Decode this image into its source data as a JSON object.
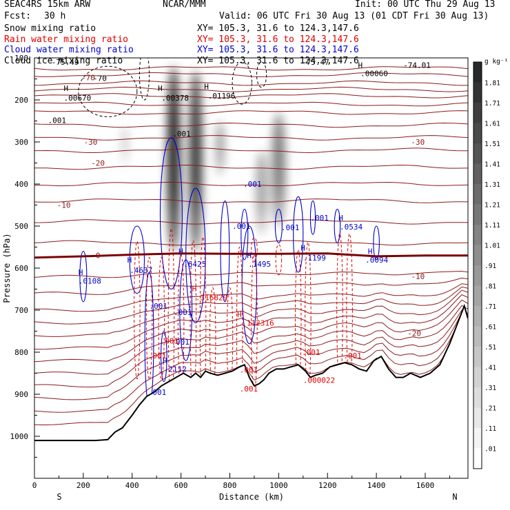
{
  "header": {
    "model": "SEAC4RS 15km ARW",
    "org": "NCAR/MMM",
    "init": "Init: 00 UTC Thu 29 Aug 13",
    "fcst_label": "Fcst:",
    "fcst_value": "30 h",
    "valid": "Valid: 06 UTC Fri 30 Aug 13 (01 CDT Fri 30 Aug 13)"
  },
  "fields": [
    {
      "name": "Snow mixing ratio",
      "xy": "XY= 105.3, 31.6 to 124.3,147.6",
      "color": "#000000"
    },
    {
      "name": "Rain water mixing ratio",
      "xy": "XY= 105.3, 31.6 to 124.3,147.6",
      "color": "#dd0000"
    },
    {
      "name": "Cloud water mixing ratio",
      "xy": "XY= 105.3, 31.6 to 124.3,147.6",
      "color": "#0000cc"
    },
    {
      "name": "Cloud ice mixing ratio",
      "xy": "XY= 105.3, 31.6 to 124.3,147.6",
      "color": "#000000"
    }
  ],
  "chart_data": {
    "type": "contour-cross-section",
    "xlabel": "Distance (km)",
    "ylabel": "Pressure (hPa)",
    "xlim": [
      0,
      1775
    ],
    "ylim": [
      1100,
      100
    ],
    "x_ticks": [
      0,
      200,
      400,
      600,
      800,
      1000,
      1200,
      1400,
      1600
    ],
    "y_ticks": [
      100,
      200,
      300,
      400,
      500,
      600,
      700,
      800,
      900,
      1000
    ],
    "y_tick_labels": [
      "100",
      "200",
      "300",
      "400",
      "500",
      "600",
      "700",
      "800",
      "900",
      "1000"
    ],
    "x_end_labels": {
      "left": "S",
      "right": "N"
    },
    "colorbar": {
      "unit": "g kg⁻¹",
      "levels": [
        ".01",
        ".11",
        ".21",
        ".31",
        ".41",
        ".51",
        ".61",
        ".71",
        ".81",
        ".91",
        "1.01",
        "1.11",
        "1.21",
        "1.31",
        "1.41",
        "1.51",
        "1.61",
        "1.71",
        "1.81"
      ]
    },
    "terrain": [
      [
        0,
        1010
      ],
      [
        50,
        1010
      ],
      [
        100,
        1010
      ],
      [
        150,
        1010
      ],
      [
        200,
        1010
      ],
      [
        250,
        1010
      ],
      [
        300,
        1008
      ],
      [
        330,
        990
      ],
      [
        360,
        980
      ],
      [
        380,
        965
      ],
      [
        400,
        950
      ],
      [
        430,
        925
      ],
      [
        460,
        905
      ],
      [
        490,
        895
      ],
      [
        520,
        880
      ],
      [
        550,
        870
      ],
      [
        580,
        860
      ],
      [
        610,
        850
      ],
      [
        640,
        860
      ],
      [
        660,
        850
      ],
      [
        680,
        860
      ],
      [
        700,
        845
      ],
      [
        720,
        850
      ],
      [
        750,
        855
      ],
      [
        780,
        850
      ],
      [
        810,
        845
      ],
      [
        840,
        835
      ],
      [
        860,
        830
      ],
      [
        880,
        860
      ],
      [
        900,
        880
      ],
      [
        920,
        875
      ],
      [
        940,
        865
      ],
      [
        960,
        850
      ],
      [
        990,
        840
      ],
      [
        1020,
        840
      ],
      [
        1050,
        835
      ],
      [
        1080,
        830
      ],
      [
        1110,
        845
      ],
      [
        1130,
        860
      ],
      [
        1150,
        855
      ],
      [
        1180,
        850
      ],
      [
        1210,
        835
      ],
      [
        1240,
        830
      ],
      [
        1270,
        825
      ],
      [
        1300,
        830
      ],
      [
        1330,
        840
      ],
      [
        1360,
        845
      ],
      [
        1390,
        820
      ],
      [
        1420,
        810
      ],
      [
        1450,
        840
      ],
      [
        1480,
        860
      ],
      [
        1510,
        860
      ],
      [
        1540,
        850
      ],
      [
        1580,
        860
      ],
      [
        1620,
        850
      ],
      [
        1660,
        830
      ],
      [
        1700,
        780
      ],
      [
        1740,
        720
      ],
      [
        1760,
        690
      ],
      [
        1775,
        720
      ]
    ],
    "freezing_level": [
      [
        0,
        575
      ],
      [
        200,
        572
      ],
      [
        400,
        568
      ],
      [
        600,
        565
      ],
      [
        800,
        566
      ],
      [
        1000,
        566
      ],
      [
        1200,
        565
      ],
      [
        1400,
        572
      ],
      [
        1600,
        570
      ],
      [
        1775,
        570
      ]
    ],
    "temperature_isotherms": [
      {
        "label": "-70",
        "p": 147,
        "label_x": 220
      },
      {
        "label": "-30",
        "p": 300,
        "label_x": 230
      },
      {
        "label": "-20",
        "p": 350,
        "label_x": 260
      },
      {
        "label": "-10",
        "p": 450,
        "label_x": 120
      },
      {
        "label": "0",
        "p": 570,
        "label_x": 260
      },
      {
        "label": "-10",
        "p": 620,
        "label_x": 1570
      },
      {
        "label": "-20",
        "p": 755,
        "label_x": 1555
      },
      {
        "label": "-30",
        "p": 300,
        "label_x": 1570
      }
    ],
    "potential_temp_lines": [
      125,
      140,
      160,
      175,
      190,
      210,
      230,
      260,
      290,
      320,
      360,
      400,
      440,
      490,
      540,
      620,
      660,
      700,
      730,
      760,
      790,
      820,
      850,
      880,
      910,
      940,
      970
    ],
    "snow_columns": [
      {
        "x_center": 570,
        "p_top": 120,
        "p_bot": 560,
        "width_km": 55,
        "peak": 1.81
      },
      {
        "x_center": 660,
        "p_top": 130,
        "p_bot": 560,
        "width_km": 55,
        "peak": 1.61
      },
      {
        "x_center": 760,
        "p_top": 250,
        "p_bot": 380,
        "width_km": 35,
        "peak": 0.71
      },
      {
        "x_center": 930,
        "p_top": 320,
        "p_bot": 520,
        "width_km": 50,
        "peak": 0.61
      },
      {
        "x_center": 1000,
        "p_top": 230,
        "p_bot": 500,
        "width_km": 60,
        "peak": 0.91
      },
      {
        "x_center": 370,
        "p_top": 260,
        "p_bot": 360,
        "width_km": 30,
        "peak": 0.21
      }
    ],
    "labels_black": [
      {
        "text": "-75.49",
        "x": 70,
        "p": 110
      },
      {
        "text": "-70",
        "x": 240,
        "p": 148
      },
      {
        "text": "H",
        "x": 120,
        "p": 172
      },
      {
        "text": ".00670",
        "x": 120,
        "p": 195
      },
      {
        "text": "H",
        "x": 505,
        "p": 172
      },
      {
        "text": ".00378",
        "x": 520,
        "p": 195
      },
      {
        "text": "H",
        "x": 695,
        "p": 168
      },
      {
        "text": ".01196",
        "x": 710,
        "p": 190
      },
      {
        "text": ".001",
        "x": 565,
        "p": 280
      },
      {
        "text": ".001",
        "x": 55,
        "p": 248
      },
      {
        "text": "-75.47",
        "x": 1095,
        "p": 110
      },
      {
        "text": "H",
        "x": 1325,
        "p": 117
      },
      {
        "text": ".00060",
        "x": 1335,
        "p": 137
      },
      {
        "text": "-74.01",
        "x": 1510,
        "p": 117
      }
    ],
    "labels_blue": [
      {
        "text": ".001",
        "x": 855,
        "p": 400
      },
      {
        "text": ".001",
        "x": 810,
        "p": 500
      },
      {
        "text": ".001",
        "x": 1010,
        "p": 503
      },
      {
        "text": ".001",
        "x": 1130,
        "p": 480
      },
      {
        "text": "H",
        "x": 1245,
        "p": 480
      },
      {
        "text": ".0534",
        "x": 1250,
        "p": 502
      },
      {
        "text": "H",
        "x": 1365,
        "p": 560
      },
      {
        "text": ".0094",
        "x": 1355,
        "p": 580
      },
      {
        "text": "H",
        "x": 380,
        "p": 580
      },
      {
        "text": ".4637",
        "x": 390,
        "p": 605
      },
      {
        "text": "H",
        "x": 180,
        "p": 610
      },
      {
        "text": ".0108",
        "x": 180,
        "p": 630
      },
      {
        "text": "H",
        "x": 590,
        "p": 560
      },
      {
        "text": ".6425",
        "x": 610,
        "p": 590
      },
      {
        "text": "H",
        "x": 870,
        "p": 570
      },
      {
        "text": ".1495",
        "x": 875,
        "p": 590
      },
      {
        "text": "H",
        "x": 1090,
        "p": 552
      },
      {
        "text": ".1199",
        "x": 1100,
        "p": 575
      },
      {
        "text": ".001",
        "x": 470,
        "p": 690
      },
      {
        "text": ".001",
        "x": 570,
        "p": 705
      },
      {
        "text": ".001",
        "x": 560,
        "p": 775
      },
      {
        "text": "H",
        "x": 525,
        "p": 820
      },
      {
        "text": ".2112",
        "x": 530,
        "p": 840
      },
      {
        "text": ".001",
        "x": 465,
        "p": 895
      }
    ],
    "labels_red": [
      {
        "text": "H",
        "x": 645,
        "p": 648
      },
      {
        "text": ".316829",
        "x": 660,
        "p": 670
      },
      {
        "text": "H",
        "x": 830,
        "p": 710
      },
      {
        "text": ".112316",
        "x": 850,
        "p": 730
      },
      {
        "text": ".001",
        "x": 465,
        "p": 808
      },
      {
        "text": ".001",
        "x": 515,
        "p": 773
      },
      {
        "text": ".001",
        "x": 840,
        "p": 842
      },
      {
        "text": ".001",
        "x": 1095,
        "p": 800
      },
      {
        "text": ".001",
        "x": 1265,
        "p": 808
      },
      {
        "text": ".000022",
        "x": 1100,
        "p": 866
      },
      {
        "text": ".001",
        "x": 840,
        "p": 887
      }
    ]
  },
  "colors": {
    "theta": "#8b1a1a",
    "isotherm_label": "#8b1a1a",
    "freezing": "#7a0000",
    "terrain": "#000000",
    "cloud_water": "#0000cc",
    "rain": "#dd0000",
    "ice": "#000000"
  }
}
